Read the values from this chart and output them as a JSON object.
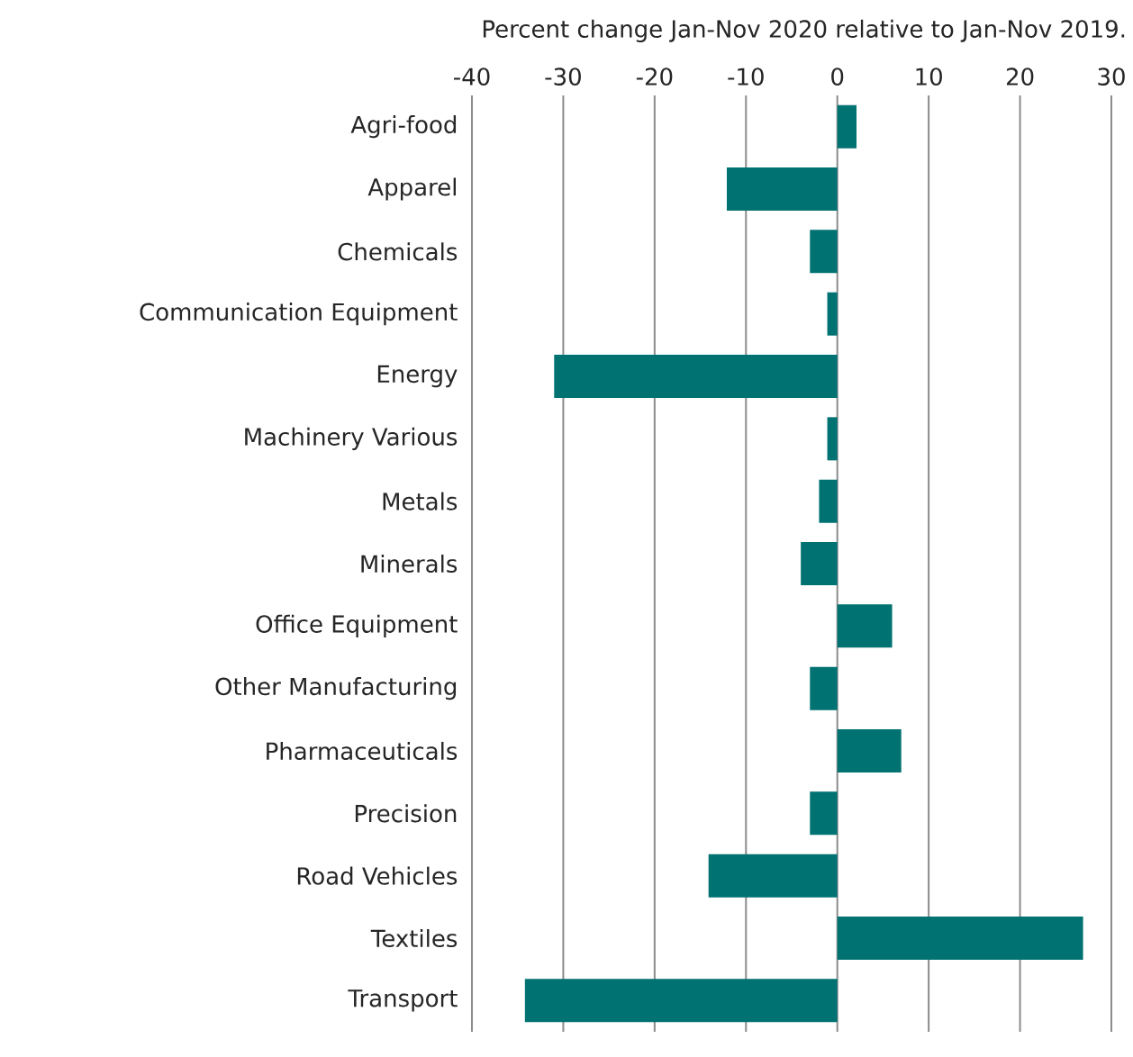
{
  "chart_data": {
    "type": "bar",
    "orientation": "horizontal",
    "xlabel": "Percent change Jan-Nov 2020 relative to Jan-Nov 2019.",
    "categories": [
      "Agri-food",
      "Apparel",
      "Chemicals",
      "Communication Equipment",
      "Energy",
      "Machinery Various",
      "Metals",
      "Minerals",
      "Office Equipment",
      "Other Manufacturing",
      "Pharmaceuticals",
      "Precision",
      "Road Vehicles",
      "Textiles",
      "Transport"
    ],
    "values": [
      2.1,
      -12.1,
      -3.0,
      -1.1,
      -31.0,
      -1.1,
      -2.0,
      -4.0,
      6.0,
      -3.0,
      7.0,
      -3.0,
      -14.1,
      26.9,
      -34.2
    ],
    "color": "#007272",
    "xlim": [
      -40,
      30
    ],
    "xticks": [
      -40,
      -30,
      -20,
      -10,
      0,
      10,
      20,
      30
    ],
    "grid": "x"
  }
}
